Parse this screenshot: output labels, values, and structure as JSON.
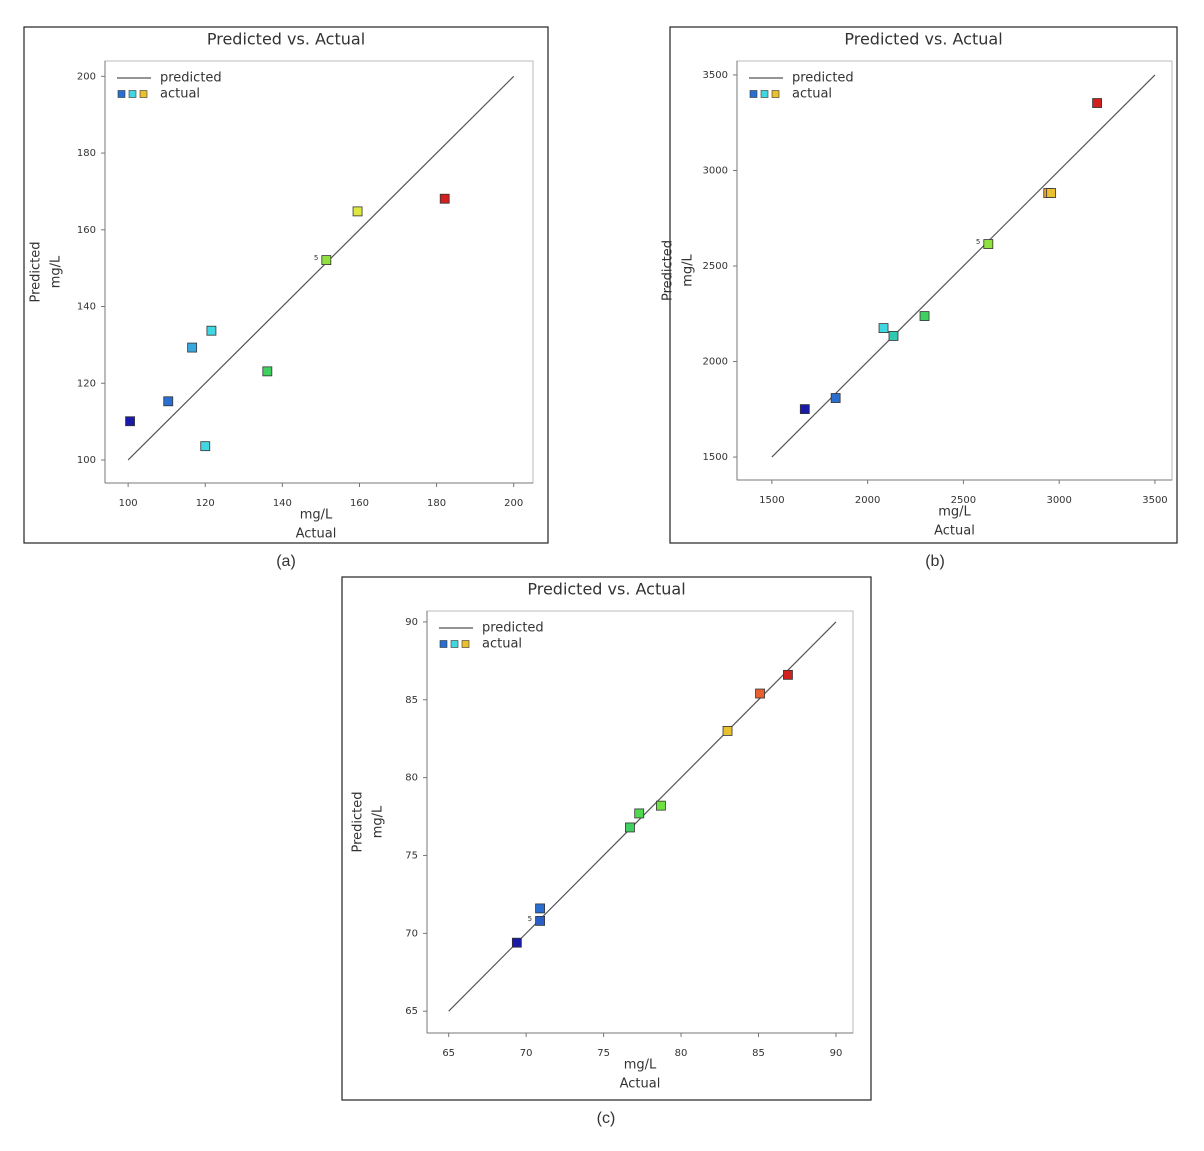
{
  "chart_data": [
    {
      "type": "scatter",
      "title": "Predicted vs. Actual",
      "caption": "(a)",
      "xlabel": "Actual",
      "xunit": "mg/L",
      "ylabel": "Predicted",
      "yunit": "mg/L",
      "xlim": [
        94,
        205
      ],
      "ylim": [
        94,
        204
      ],
      "xticks": [
        100,
        120,
        140,
        160,
        180,
        200
      ],
      "yticks": [
        100,
        120,
        140,
        160,
        180,
        200
      ],
      "series": [
        {
          "name": "predicted",
          "type": "line",
          "color": "#555555",
          "x": [
            100,
            200
          ],
          "values": [
            100,
            200
          ]
        },
        {
          "name": "actual",
          "type": "scatter",
          "legend_colors": [
            "#2a6fd0",
            "#40d8e0",
            "#e8c030"
          ],
          "x": [
            100.5,
            110.4,
            116.6,
            121.6,
            120,
            136.1,
            151.4,
            159.5,
            182.1
          ],
          "values": [
            110.1,
            115.3,
            129.3,
            133.7,
            103.6,
            123.1,
            152.1,
            164.8,
            168.1
          ],
          "colors": [
            "#1a1aa8",
            "#2a6fd0",
            "#3aa8e0",
            "#40d8e0",
            "#40d8e0",
            "#40d060",
            "#90e040",
            "#e0e840",
            "#d02020"
          ]
        }
      ],
      "annotations": [
        {
          "text": "5",
          "x": 151.4,
          "y": 152.1
        }
      ]
    },
    {
      "type": "scatter",
      "title": "Predicted vs. Actual",
      "caption": "(b)",
      "xlabel": "Actual",
      "xunit": "mg/L",
      "ylabel": "Predicted",
      "yunit": "mg/L",
      "xlim": [
        1318,
        3589
      ],
      "ylim": [
        1380,
        3573
      ],
      "xticks": [
        1500,
        2000,
        2500,
        3000,
        3500
      ],
      "yticks": [
        1500,
        2000,
        2500,
        3000,
        3500
      ],
      "series": [
        {
          "name": "predicted",
          "type": "line",
          "color": "#555555",
          "x": [
            1500,
            3500
          ],
          "values": [
            1500,
            3500
          ]
        },
        {
          "name": "actual",
          "type": "scatter",
          "legend_colors": [
            "#2a6fd0",
            "#40d8e0",
            "#e8c030"
          ],
          "x": [
            1672,
            1833,
            2083,
            2135,
            2297,
            2630,
            2943,
            2958,
            3198
          ],
          "values": [
            1751,
            1809,
            2175,
            2134,
            2238,
            2615,
            2882,
            2882,
            3353
          ],
          "colors": [
            "#1a1aa8",
            "#2a6fd0",
            "#40d8e0",
            "#30c8b0",
            "#40d060",
            "#90e040",
            "#f0a030",
            "#e8c030",
            "#d02020"
          ]
        }
      ],
      "annotations": [
        {
          "text": "5",
          "x": 2630,
          "y": 2615
        }
      ]
    },
    {
      "type": "scatter",
      "title": "Predicted vs. Actual",
      "caption": "(c)",
      "xlabel": "Actual",
      "xunit": "mg/L",
      "ylabel": "Predicted",
      "yunit": "mg/L",
      "xlim": [
        63.6,
        91.1
      ],
      "ylim": [
        63.6,
        90.7
      ],
      "xticks": [
        65,
        70,
        75,
        80,
        85,
        90
      ],
      "yticks": [
        65,
        70,
        75,
        80,
        85,
        90
      ],
      "series": [
        {
          "name": "predicted",
          "type": "line",
          "color": "#555555",
          "x": [
            65,
            90
          ],
          "values": [
            65,
            90
          ]
        },
        {
          "name": "actual",
          "type": "scatter",
          "legend_colors": [
            "#2a6fd0",
            "#40d8e0",
            "#e8c030"
          ],
          "x": [
            69.4,
            70.9,
            70.9,
            76.7,
            77.3,
            78.7,
            83.0,
            85.1,
            86.9
          ],
          "values": [
            69.4,
            70.8,
            71.6,
            76.8,
            77.7,
            78.2,
            83.0,
            85.4,
            86.6
          ],
          "colors": [
            "#1a1aa8",
            "#2a5fc8",
            "#2a6fd0",
            "#40d060",
            "#50d850",
            "#70e040",
            "#e8c030",
            "#e86030",
            "#d02020"
          ]
        }
      ],
      "annotations": [
        {
          "text": "5",
          "x": 70.9,
          "y": 70.8
        }
      ]
    }
  ]
}
